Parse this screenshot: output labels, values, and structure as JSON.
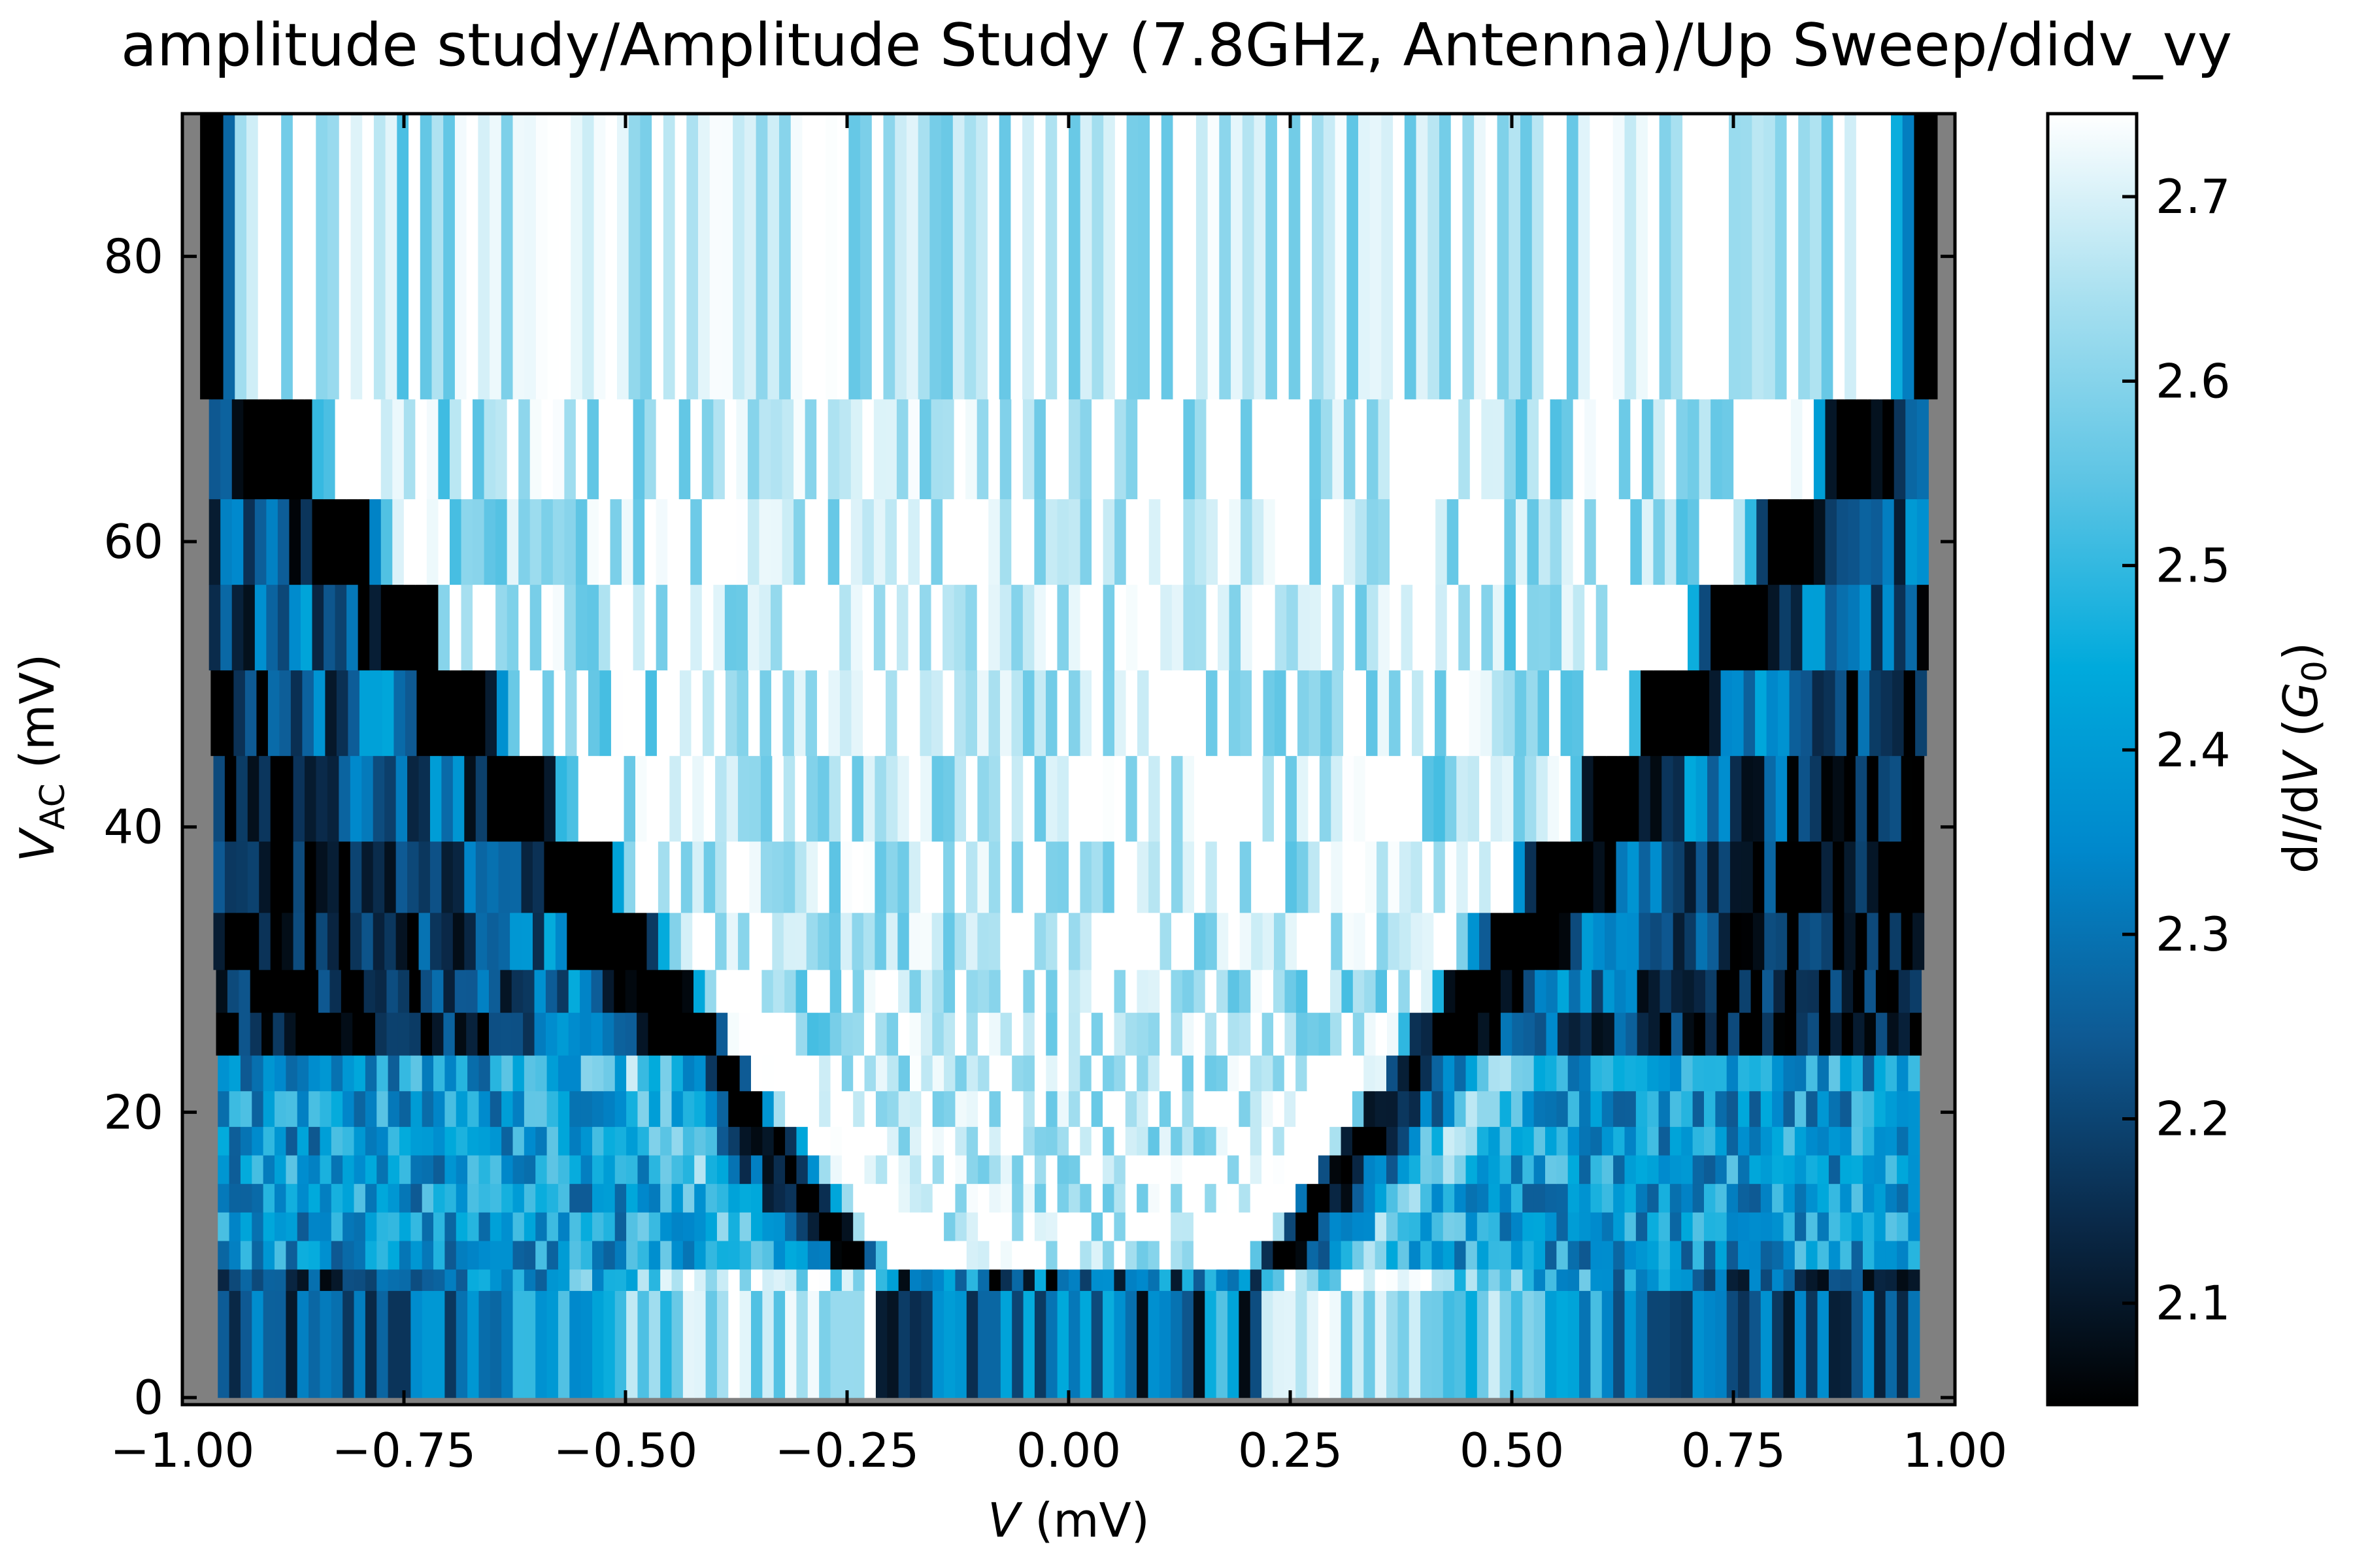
{
  "chart_data": {
    "type": "heatmap",
    "title": "amplitude study/Amplitude Study (7.8GHz, Antenna)/Up Sweep/didv_vy",
    "xlabel": {
      "symbol": "V",
      "unit": " (mV)"
    },
    "ylabel": {
      "symbol": "V",
      "subscript": "AC",
      "unit": " (mV)"
    },
    "colorbar_label": {
      "prefix": "d",
      "i1": "I",
      "mid": "/d",
      "i2": "V",
      "open": " (",
      "sym": "G",
      "sub": "0",
      "close": ")"
    },
    "xlim": [
      -1.0,
      1.0
    ],
    "ylim": [
      -0.5,
      90
    ],
    "x_ticks": [
      -1.0,
      -0.75,
      -0.5,
      -0.25,
      0.0,
      0.25,
      0.5,
      0.75,
      1.0
    ],
    "x_tick_labels": [
      "−1.00",
      "−0.75",
      "−0.50",
      "−0.25",
      "0.00",
      "0.25",
      "0.50",
      "0.75",
      "1.00"
    ],
    "y_ticks": [
      0,
      20,
      40,
      60,
      80
    ],
    "y_tick_labels": [
      "0",
      "20",
      "40",
      "60",
      "80"
    ],
    "clim": [
      2.045,
      2.745
    ],
    "colorbar_ticks": [
      2.1,
      2.2,
      2.3,
      2.4,
      2.5,
      2.6,
      2.7
    ],
    "colorbar_tick_labels": [
      "2.1",
      "2.2",
      "2.3",
      "2.4",
      "2.5",
      "2.6",
      "2.7"
    ],
    "colormap": [
      "#000000",
      "#0a2a4a",
      "#0e5a94",
      "#0088cc",
      "#00aadc",
      "#5cc4e4",
      "#a8e0f0",
      "#ffffff"
    ],
    "background_color": "#808080",
    "rows_vac": [
      0,
      7.5,
      9,
      11,
      13,
      15,
      17,
      19,
      21.5,
      24,
      27,
      30,
      34,
      39,
      45,
      51,
      57,
      63,
      70
    ],
    "rows_xrange": [
      [
        -0.96,
        0.96
      ],
      [
        -0.96,
        0.96
      ],
      [
        -0.96,
        0.96
      ],
      [
        -0.96,
        0.96
      ],
      [
        -0.96,
        0.96
      ],
      [
        -0.96,
        0.96
      ],
      [
        -0.96,
        0.96
      ],
      [
        -0.96,
        0.96
      ],
      [
        -0.96,
        0.96
      ],
      [
        -0.962,
        0.962
      ],
      [
        -0.962,
        0.962
      ],
      [
        -0.965,
        0.965
      ],
      [
        -0.965,
        0.965
      ],
      [
        -0.965,
        0.965
      ],
      [
        -0.968,
        0.968
      ],
      [
        -0.97,
        0.97
      ],
      [
        -0.97,
        0.97
      ],
      [
        -0.97,
        0.97
      ],
      [
        -0.98,
        0.98
      ]
    ],
    "grid": false
  }
}
